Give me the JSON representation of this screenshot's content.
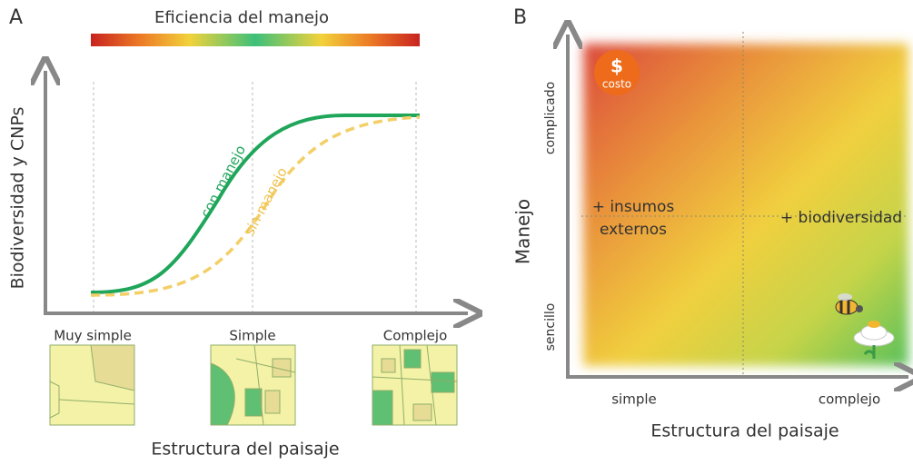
{
  "panel_a": {
    "letter": "A",
    "gradient_title": "Eficiencia del manejo",
    "y_axis_label": "Biodiversidad y CNPs",
    "x_axis_label": "Estructura del paisaje",
    "x_categories": [
      "Muy simple",
      "Simple",
      "Complejo"
    ],
    "curves": [
      {
        "label": "con manejo"
      },
      {
        "label": "sin manejo"
      }
    ]
  },
  "panel_b": {
    "letter": "B",
    "y_axis_label": "Manejo",
    "y_ticks": [
      "sencillo",
      "complicado"
    ],
    "x_axis_label": "Estructura del paisaje",
    "x_ticks": [
      "simple",
      "complejo"
    ],
    "annotations": {
      "left": [
        "+ insumos",
        "externos"
      ],
      "right": "+ biodiversidad"
    },
    "cost_icon": {
      "symbol": "$",
      "label": "costo"
    }
  }
}
